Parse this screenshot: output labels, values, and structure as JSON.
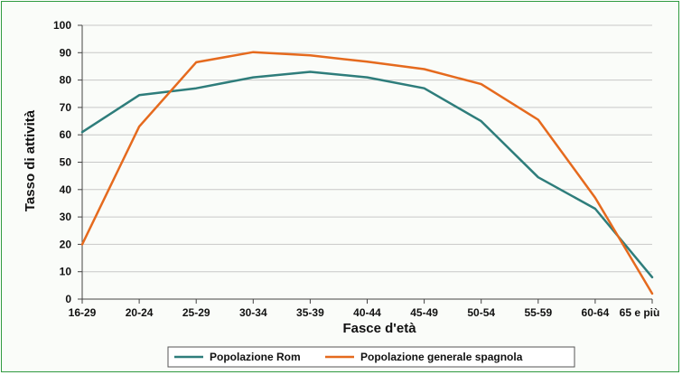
{
  "chart_data": {
    "type": "line",
    "title": "",
    "xlabel": "Fasce d'età",
    "ylabel": "Tasso di attività",
    "ylim": [
      0,
      100
    ],
    "yticks": [
      0,
      10,
      20,
      30,
      40,
      50,
      60,
      70,
      80,
      90,
      100
    ],
    "grid": "horizontal",
    "legend_position": "bottom",
    "categories": [
      "16-29",
      "20-24",
      "25-29",
      "30-34",
      "35-39",
      "40-44",
      "45-49",
      "50-54",
      "55-59",
      "60-64",
      "65 e più"
    ],
    "series": [
      {
        "name": "Popolazione Rom",
        "color": "#2e7d7b",
        "values": [
          61,
          74.5,
          77,
          81,
          83,
          81,
          77,
          65,
          44.5,
          33,
          8
        ]
      },
      {
        "name": "Popolazione generale spagnola",
        "color": "#e56a1e",
        "values": [
          20,
          63,
          86.5,
          90.2,
          89,
          86.7,
          84,
          78.5,
          65.5,
          37,
          2
        ]
      }
    ]
  }
}
